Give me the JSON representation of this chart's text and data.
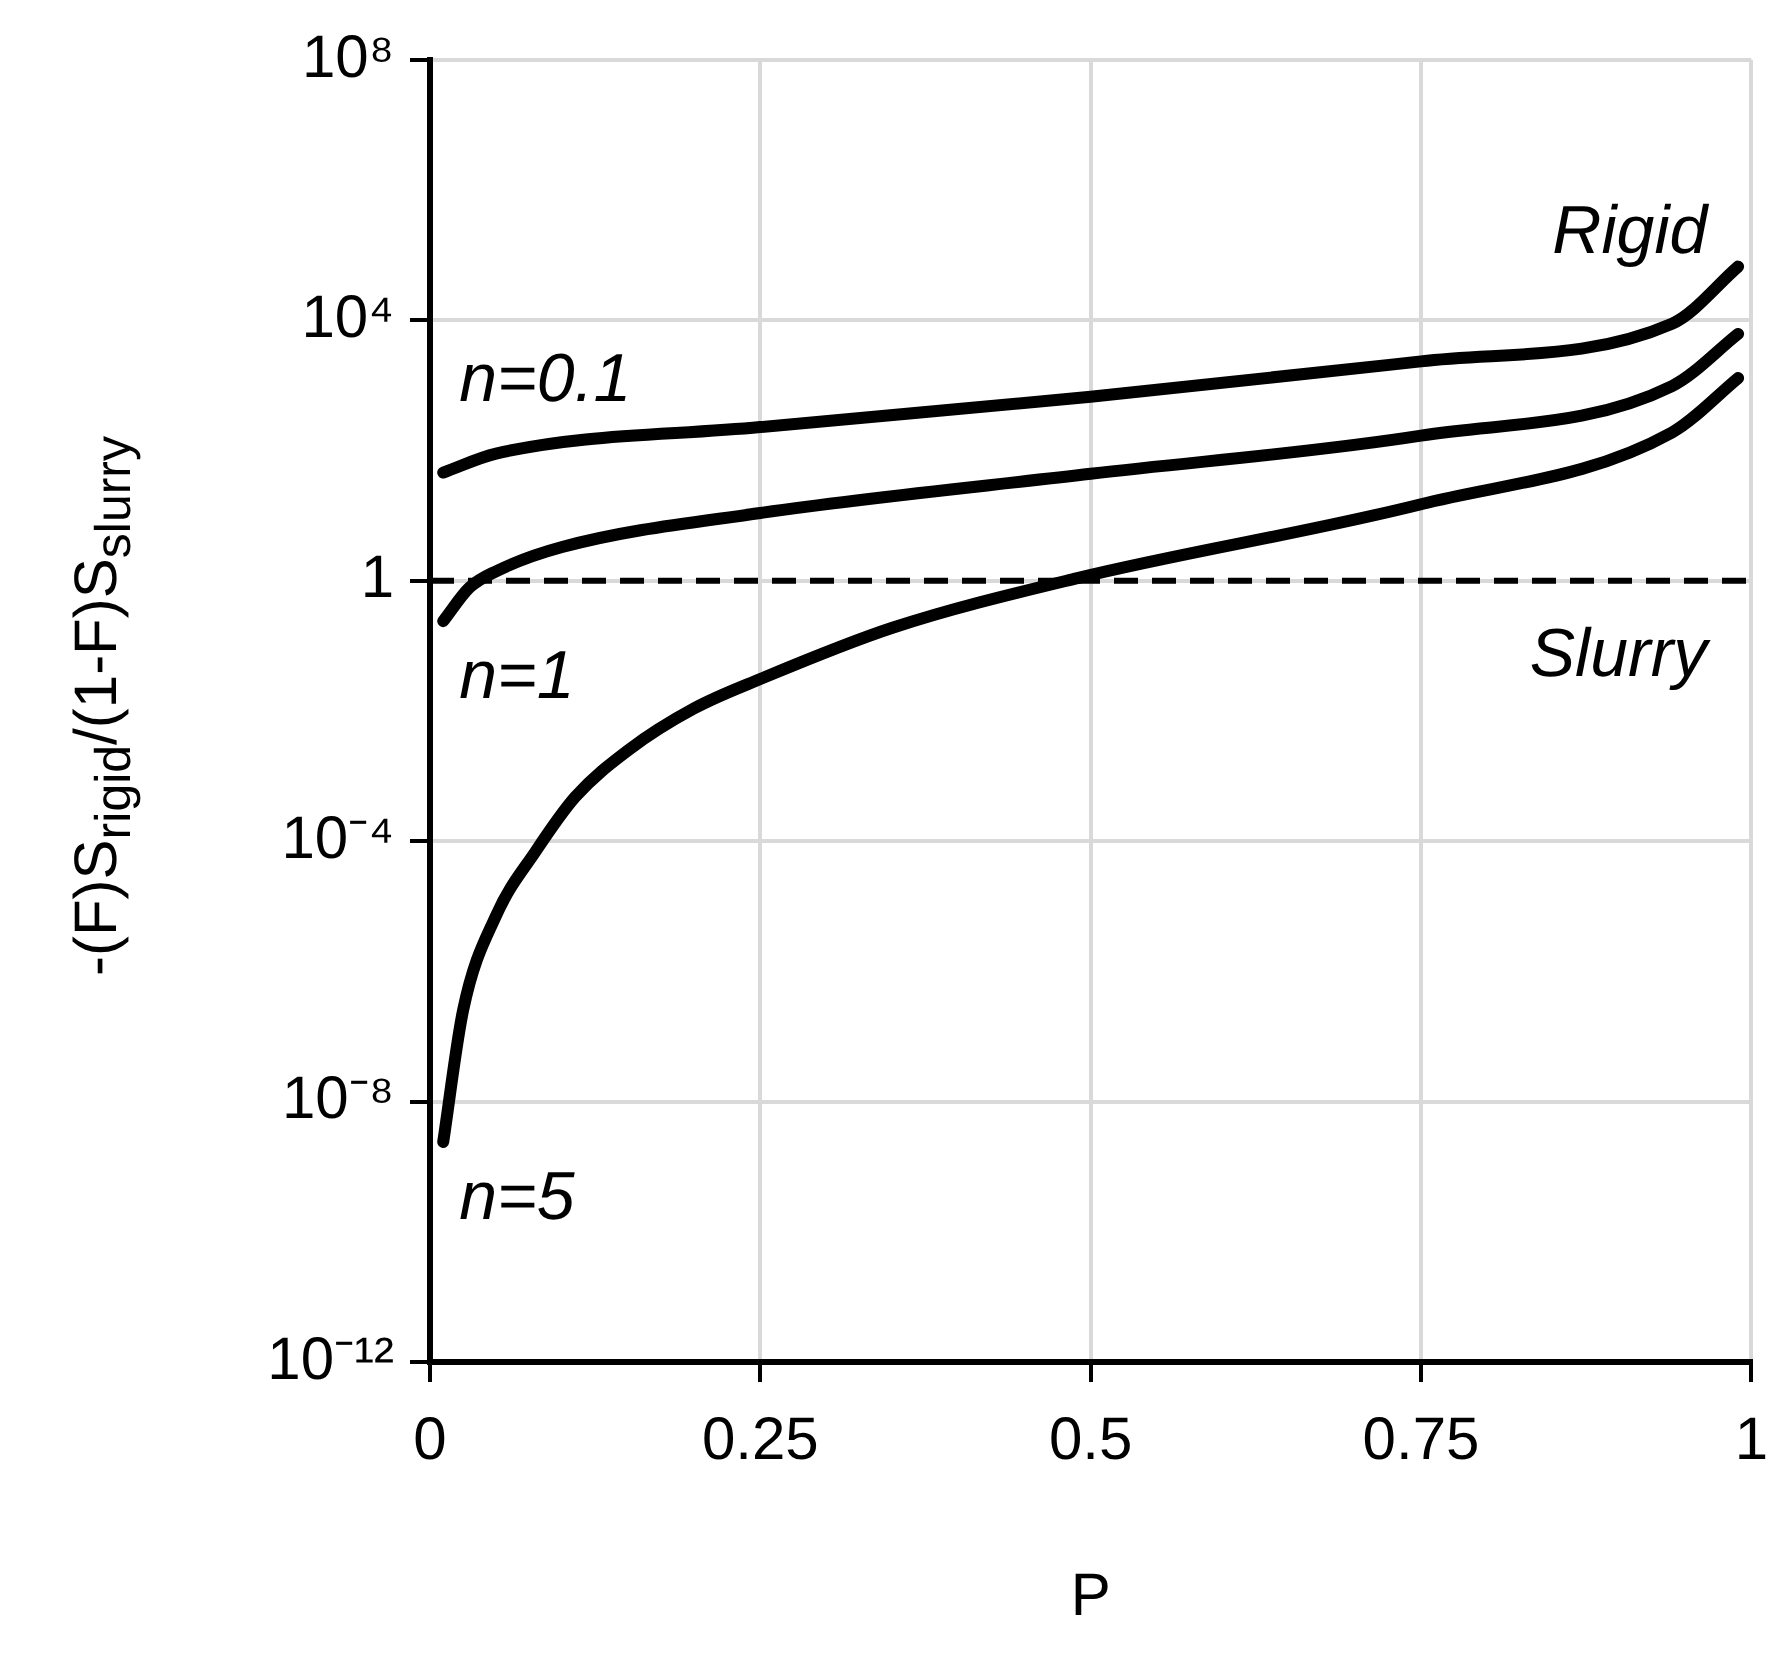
{
  "chart_data": {
    "type": "line",
    "xlabel": "P",
    "ylabel": "-(F)S$_{rigid}$/(1-F)S$_{slurry}$",
    "xlim": [
      0,
      1
    ],
    "xticks": [
      0,
      0.25,
      0.5,
      0.75,
      1
    ],
    "ylim": [
      1e-12,
      100000000.0
    ],
    "yticks": [
      {
        "value": 1e-12,
        "label": "10⁻¹²"
      },
      {
        "value": 1e-08,
        "label": "10⁻⁸"
      },
      {
        "value": 0.0001,
        "label": "10⁻⁴"
      },
      1,
      {
        "value": 10000.0,
        "label": "10⁴"
      },
      {
        "value": 100000000.0,
        "label": "10⁸"
      }
    ],
    "log": "y",
    "grid": true,
    "legend": false,
    "marker": "none",
    "line_style": "solid",
    "series": [
      {
        "name": "n=0.1",
        "color": "#000000",
        "x": [
          0.01,
          0.05,
          0.25,
          0.5,
          0.75,
          0.94,
          0.99
        ],
        "values": [
          46,
          90,
          230,
          670,
          2350,
          8900,
          67000
        ]
      },
      {
        "name": "n=1",
        "color": "#000000",
        "x": [
          0.01,
          0.03,
          0.05,
          0.1,
          0.25,
          0.5,
          0.75,
          0.94,
          0.99
        ],
        "values": [
          0.24,
          0.79,
          1.4,
          3.3,
          11,
          44,
          170,
          980,
          6200
        ]
      },
      {
        "name": "n=5",
        "color": "#000000",
        "x": [
          0.01,
          0.025,
          0.05,
          0.08,
          0.11,
          0.15,
          0.2,
          0.25,
          0.35,
          0.49,
          0.75,
          0.94,
          0.99
        ],
        "values": [
          2.4e-09,
          2.5e-07,
          7.2e-06,
          7e-05,
          0.00048,
          0.0025,
          0.011,
          0.031,
          0.19,
          1.1,
          15,
          190,
          1300
        ]
      }
    ],
    "ref_lines": [
      {
        "axis": "y",
        "value": 1,
        "color": "#000000",
        "line_style": "dashed"
      }
    ],
    "annotations": [
      "Rigid",
      "Slurry"
    ]
  }
}
